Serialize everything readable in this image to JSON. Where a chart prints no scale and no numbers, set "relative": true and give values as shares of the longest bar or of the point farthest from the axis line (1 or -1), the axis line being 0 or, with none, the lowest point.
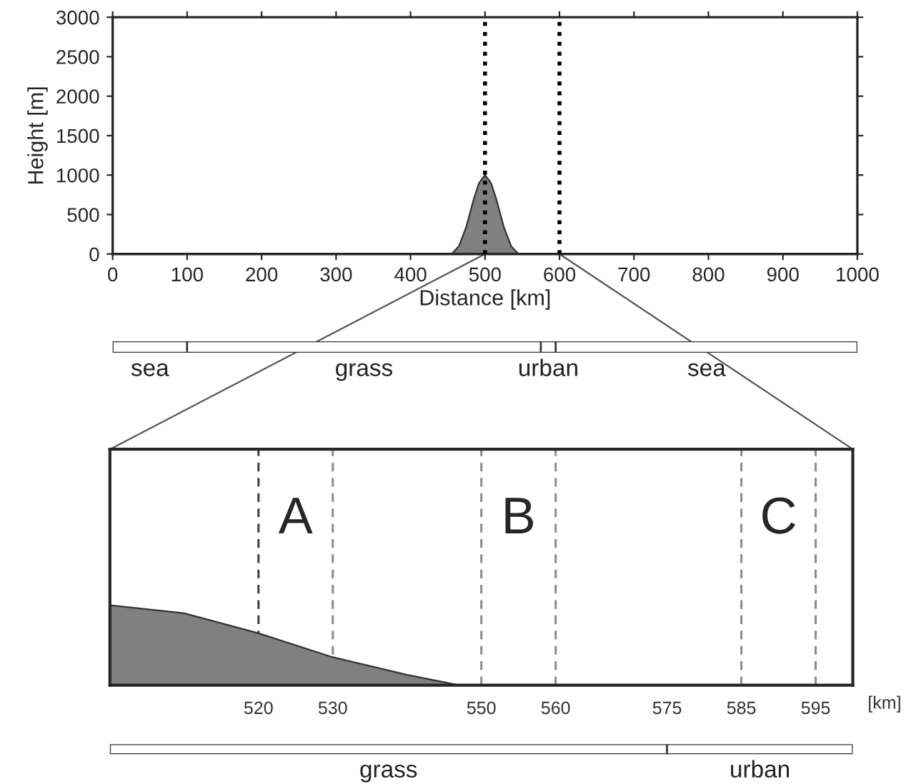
{
  "chart_data": [
    {
      "type": "area",
      "xlabel": "Distance [km]",
      "ylabel": "Height [m]",
      "x": [
        0,
        455,
        465,
        475,
        485,
        492,
        500,
        508,
        515,
        525,
        535,
        545,
        1000
      ],
      "values": [
        0,
        0,
        100,
        350,
        700,
        900,
        1000,
        900,
        700,
        350,
        100,
        0,
        0
      ],
      "color": "#808080",
      "xlim": [
        0,
        1000
      ],
      "ylim": [
        0,
        3000
      ],
      "xticks": [
        0,
        100,
        200,
        300,
        400,
        500,
        600,
        700,
        800,
        900,
        1000
      ],
      "yticks": [
        0,
        500,
        1000,
        1500,
        2000,
        2500,
        3000
      ],
      "grid": false,
      "legend": false,
      "ref_lines": [
        {
          "axis": "x",
          "value": 500,
          "color": "#000000",
          "line_style": "dotted"
        },
        {
          "axis": "x",
          "value": 600,
          "color": "#000000",
          "line_style": "dotted"
        }
      ]
    },
    {
      "type": "bar",
      "orientation": "horizontal",
      "stacked": true,
      "categories": [
        null
      ],
      "xlim": [
        0,
        1000
      ],
      "tick_labels": false,
      "grid": false,
      "legend": false,
      "series": [
        {
          "name": "sea",
          "color": "#ffffff",
          "values": [
            100
          ]
        },
        {
          "name": "grass",
          "color": "#ffffff",
          "values": [
            475
          ]
        },
        {
          "name": "urban",
          "color": "#ffffff",
          "values": [
            20
          ]
        },
        {
          "name": "sea",
          "color": "#ffffff",
          "values": [
            405
          ]
        }
      ]
    },
    {
      "type": "area",
      "relative": true,
      "xlabel": "[km]",
      "x": [
        500,
        510,
        520,
        530,
        540,
        547,
        600
      ],
      "values": [
        1,
        0.9,
        0.65,
        0.35,
        0.13,
        0,
        0
      ],
      "color": "#808080",
      "xlim": [
        500,
        600
      ],
      "xticks": [
        520,
        530,
        550,
        560,
        575,
        585,
        595
      ],
      "grid": false,
      "legend": false,
      "ref_lines": [
        {
          "axis": "x",
          "value": 520,
          "color": "#404040",
          "line_style": "dashed"
        },
        {
          "axis": "x",
          "value": 530,
          "color": "#8c8c8c",
          "line_style": "dashed"
        },
        {
          "axis": "x",
          "value": 550,
          "color": "#8c8c8c",
          "line_style": "dashed"
        },
        {
          "axis": "x",
          "value": 560,
          "color": "#8c8c8c",
          "line_style": "dashed"
        },
        {
          "axis": "x",
          "value": 585,
          "color": "#8c8c8c",
          "line_style": "dashed"
        },
        {
          "axis": "x",
          "value": 595,
          "color": "#8c8c8c",
          "line_style": "dashed"
        }
      ],
      "annotations": [
        "A",
        "B",
        "C"
      ]
    },
    {
      "type": "bar",
      "orientation": "horizontal",
      "stacked": true,
      "categories": [
        null
      ],
      "relative": true,
      "tick_labels": false,
      "grid": false,
      "legend": false,
      "series": [
        {
          "name": "grass",
          "color": "#ffffff",
          "values": [
            0.75
          ]
        },
        {
          "name": "urban",
          "color": "#ffffff",
          "values": [
            0.25
          ]
        }
      ]
    }
  ]
}
